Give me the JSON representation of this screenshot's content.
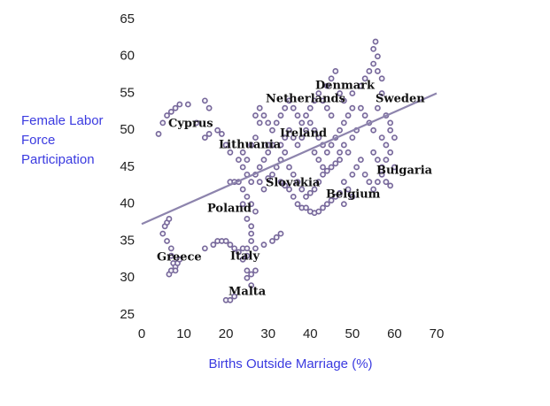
{
  "chart_data": {
    "type": "scatter",
    "xlabel": "Births Outside Marriage (%)",
    "ylabel": "Female Labor Force Participation",
    "xlim": [
      0,
      70
    ],
    "ylim": [
      25,
      65
    ],
    "xticks": [
      0,
      10,
      20,
      30,
      40,
      50,
      60,
      70
    ],
    "yticks": [
      25,
      30,
      35,
      40,
      45,
      50,
      55,
      60,
      65
    ],
    "grid": false,
    "color": "#76679a",
    "x": [
      5,
      5.5,
      6,
      6.5,
      6,
      7,
      7,
      7.5,
      8,
      8.5,
      9,
      6.5,
      7,
      8,
      4,
      5,
      6,
      7,
      8,
      9,
      11,
      13,
      15,
      16,
      15,
      16,
      18,
      19,
      20,
      21,
      15,
      17,
      18,
      19,
      20,
      21,
      22,
      23,
      24,
      25,
      26,
      27,
      29,
      31,
      32,
      33,
      25,
      24,
      20,
      21,
      22,
      25,
      26,
      27,
      25,
      26,
      21,
      22,
      23,
      24,
      25,
      26,
      25,
      26,
      26,
      27,
      24,
      23,
      24,
      25,
      26,
      27,
      28,
      27,
      28,
      29,
      30,
      31,
      30,
      29,
      28,
      27,
      26,
      25,
      24,
      28,
      29,
      30,
      31,
      32,
      33,
      34,
      35,
      36,
      37,
      38,
      33,
      34,
      35,
      36,
      37,
      38,
      39,
      40,
      41,
      42,
      43,
      44,
      45,
      46,
      47,
      39,
      40,
      41,
      42,
      43,
      44,
      45,
      46,
      47,
      48,
      49,
      50,
      48,
      50,
      51,
      52,
      53,
      54,
      55,
      56,
      57,
      58,
      59,
      57,
      58,
      59,
      60,
      56,
      55,
      32,
      33,
      34,
      35,
      36,
      37,
      38,
      39,
      40,
      41,
      42,
      43,
      44,
      45,
      35,
      36,
      37,
      38,
      39,
      40,
      41,
      42,
      43,
      44,
      45,
      46,
      47,
      48,
      49,
      50,
      33,
      34,
      31,
      30,
      41,
      42,
      43,
      44,
      45,
      46,
      47,
      48,
      50,
      52,
      53,
      54,
      55,
      55,
      55.5,
      56,
      56,
      57,
      57,
      56,
      58,
      59,
      59,
      60,
      58,
      57,
      55,
      54,
      53,
      52,
      51,
      50,
      49,
      48,
      47
    ],
    "y": [
      36,
      37,
      37.5,
      38,
      35,
      34,
      33,
      32,
      31.5,
      32,
      32.5,
      30.5,
      31,
      31,
      49.5,
      51,
      52,
      52.5,
      53,
      53.5,
      53.5,
      51,
      54,
      53,
      49,
      49.5,
      50,
      49.5,
      48,
      47,
      34,
      34.5,
      35,
      35,
      35,
      34.5,
      34,
      33.5,
      34,
      34,
      35,
      34,
      34.5,
      35,
      35.5,
      36,
      33,
      32.5,
      27,
      27,
      27.5,
      30,
      30.5,
      31,
      31,
      29,
      43,
      43,
      43,
      42,
      41,
      40,
      38,
      37,
      36,
      39,
      40,
      46,
      47,
      46,
      48,
      49,
      51,
      52,
      53,
      52,
      51,
      50,
      48,
      46,
      45,
      44,
      43,
      44,
      45,
      43,
      42,
      43.5,
      44,
      45,
      46,
      47,
      45,
      44,
      43,
      42,
      43,
      42.5,
      42,
      41,
      40,
      39.5,
      39.5,
      39,
      38.8,
      39,
      39.5,
      40,
      40.5,
      41,
      41.5,
      41,
      41.5,
      42,
      43,
      44,
      44.5,
      45,
      45.5,
      46,
      43,
      42,
      41,
      40,
      44,
      45,
      46,
      44,
      43,
      42,
      43,
      44,
      43,
      42.5,
      45,
      46,
      47,
      45,
      46,
      47,
      51,
      52,
      53,
      54,
      53,
      52,
      51,
      52,
      53,
      54,
      55,
      54,
      53,
      52,
      50,
      49,
      48,
      49,
      50,
      51,
      50,
      49,
      48,
      47,
      48,
      49,
      50,
      51,
      52,
      53,
      48,
      49,
      48,
      47,
      47,
      46,
      45,
      56,
      57,
      58,
      55,
      54,
      55,
      56,
      57,
      58,
      59,
      61,
      62,
      60,
      58,
      57,
      55,
      53,
      52,
      51,
      50,
      49,
      48,
      49,
      50,
      51,
      52,
      53,
      50,
      49,
      47,
      48,
      47
    ],
    "trendline": {
      "x": [
        0,
        70
      ],
      "y": [
        37.3,
        55
      ]
    },
    "annotations": [
      "Cyprus",
      "Lithuania",
      "Netherlands",
      "Denmark",
      "Sweden",
      "Ireland",
      "Bulgaria",
      "Slovakia",
      "Belgium",
      "Poland",
      "Greece",
      "Italy",
      "Malta"
    ]
  }
}
